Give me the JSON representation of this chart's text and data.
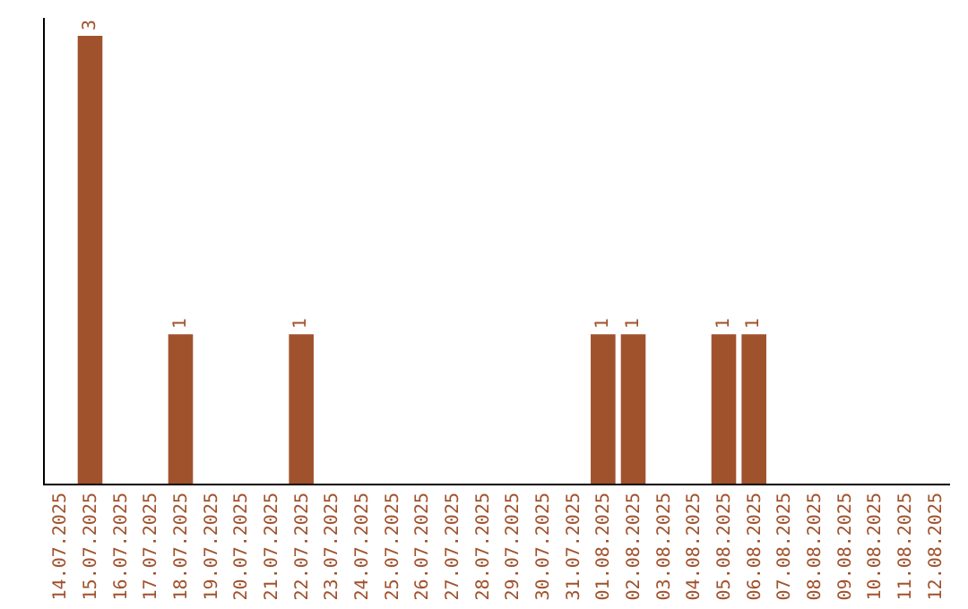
{
  "chart_data": {
    "type": "bar",
    "categories": [
      "14.07.2025",
      "15.07.2025",
      "16.07.2025",
      "17.07.2025",
      "18.07.2025",
      "19.07.2025",
      "20.07.2025",
      "21.07.2025",
      "22.07.2025",
      "23.07.2025",
      "24.07.2025",
      "25.07.2025",
      "26.07.2025",
      "27.07.2025",
      "28.07.2025",
      "29.07.2025",
      "30.07.2025",
      "31.07.2025",
      "01.08.2025",
      "02.08.2025",
      "03.08.2025",
      "04.08.2025",
      "05.08.2025",
      "06.08.2025",
      "07.08.2025",
      "08.08.2025",
      "09.08.2025",
      "10.08.2025",
      "11.08.2025",
      "12.08.2025"
    ],
    "values": [
      0,
      3,
      0,
      0,
      1,
      0,
      0,
      0,
      1,
      0,
      0,
      0,
      0,
      0,
      0,
      0,
      0,
      0,
      1,
      1,
      0,
      0,
      1,
      1,
      0,
      0,
      0,
      0,
      0,
      0
    ],
    "value_labels": [
      null,
      "3",
      null,
      null,
      "1",
      null,
      null,
      null,
      "1",
      null,
      null,
      null,
      null,
      null,
      null,
      null,
      null,
      null,
      "1",
      "1",
      null,
      null,
      "1",
      "1",
      null,
      null,
      null,
      null,
      null,
      null
    ],
    "color": "#a0522d",
    "grid": false,
    "legend": false
  }
}
